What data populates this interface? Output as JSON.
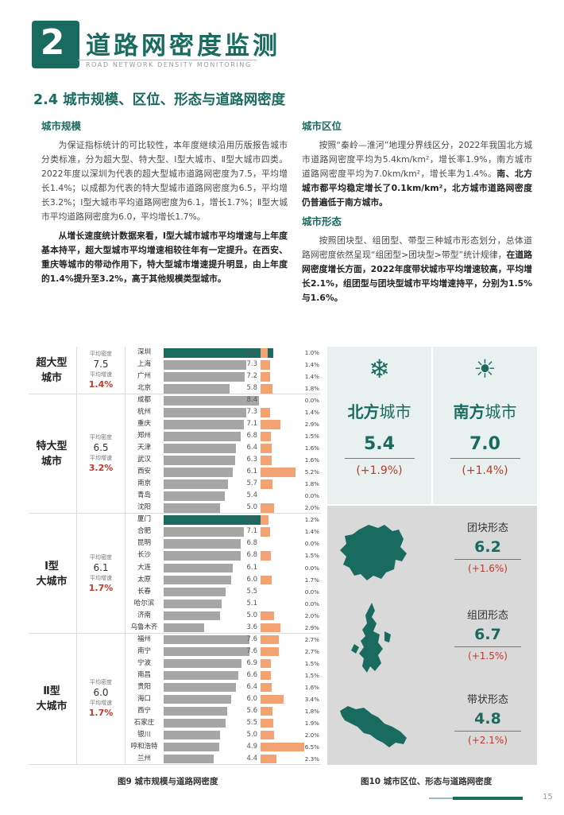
{
  "header": {
    "number": "2",
    "title": "道路网密度监测",
    "subtitle": "ROAD NETWORK DENSITY MONITORING"
  },
  "section_title": "2.4 城市规模、区位、形态与道路网密度",
  "left_col": {
    "heading": "城市规模",
    "p1": "为保证指标统计的可比较性，本年度继续沿用历版报告城市分类标准，分为超大型、特大型、Ⅰ型大城市、Ⅱ型大城市四类。2022年度以深圳为代表的超大型城市道路网密度为7.5，平均增长1.4%；以成都为代表的特大型城市道路网密度为6.5，平均增长3.2%；Ⅰ型大城市平均道路网密度为6.1，增长1.7%；Ⅱ型大城市平均道路网密度为6.0，平均增长1.7%。",
    "p2": "从增长速度统计数据来看，Ⅰ型大城市城市平均增速与上年度基本持平，超大型城市平均增速相较往年有一定提升。在西安、重庆等城市的带动作用下，特大型城市增速提升明显，由上年度的1.4%提升至3.2%，高于其他规模类型城市。"
  },
  "right_col": {
    "heading1": "城市区位",
    "p1_normal": "按照“秦岭—淮河”地理分界线区分，2022年我国北方城市道路网密度平均为5.4km/km²，增长率1.9%，南方城市道路网密度平均为7.0km/km²，增长率为1.4%。",
    "p1_bold": "南、北方城市都平均稳定增长了0.1km/km²，北方城市道路网密度仍普遍低于南方城市。",
    "heading2": "城市形态",
    "p2_normal": "按照团块型、组团型、带型三种城市形态划分，总体道路网密度依然呈现“组团型>团块型>带型”统计规律，",
    "p2_bold": "在道路网密度增长方面，2022年度带状城市平均增速较高，平均增长2.1%，组团型与团块型城市平均增速持平，分别为1.5%与1.6%。"
  },
  "fig9": {
    "caption": "图9 城市规模与道路网密度",
    "stat_label_density": "平均密度",
    "stat_label_growth": "平均增速",
    "groups": [
      {
        "name": "超大型\n城市",
        "density": "7.5",
        "growth": "1.4%",
        "rows": 4
      },
      {
        "name": "特大型\n城市",
        "density": "6.5",
        "growth": "3.2%",
        "rows": 10
      },
      {
        "name": "Ⅰ型\n大城市",
        "density": "6.1",
        "growth": "1.7%",
        "rows": 10
      },
      {
        "name": "Ⅱ型\n大城市",
        "density": "6.0",
        "growth": "1.7%",
        "rows": 11
      }
    ],
    "cities": [
      {
        "city": "深圳",
        "density": "9.7",
        "growth": "1.0%",
        "d": 9.7,
        "g": 1.0
      },
      {
        "city": "上海",
        "density": "7.3",
        "growth": "1.4%",
        "d": 7.3,
        "g": 1.4
      },
      {
        "city": "广州",
        "density": "7.2",
        "growth": "1.4%",
        "d": 7.2,
        "g": 1.4
      },
      {
        "city": "北京",
        "density": "5.8",
        "growth": "1.8%",
        "d": 5.8,
        "g": 1.8
      },
      {
        "city": "成都",
        "density": "8.4",
        "growth": "0.0%",
        "d": 8.4,
        "g": 0.0
      },
      {
        "city": "杭州",
        "density": "7.3",
        "growth": "1.4%",
        "d": 7.3,
        "g": 1.4
      },
      {
        "city": "重庆",
        "density": "7.1",
        "growth": "2.9%",
        "d": 7.1,
        "g": 2.9
      },
      {
        "city": "郑州",
        "density": "6.8",
        "growth": "1.5%",
        "d": 6.8,
        "g": 1.5
      },
      {
        "city": "天津",
        "density": "6.4",
        "growth": "1.6%",
        "d": 6.4,
        "g": 1.6
      },
      {
        "city": "武汉",
        "density": "6.3",
        "growth": "1.6%",
        "d": 6.3,
        "g": 1.6
      },
      {
        "city": "西安",
        "density": "6.1",
        "growth": "5.2%",
        "d": 6.1,
        "g": 5.2
      },
      {
        "city": "南京",
        "density": "5.7",
        "growth": "1.8%",
        "d": 5.7,
        "g": 1.8
      },
      {
        "city": "青岛",
        "density": "5.4",
        "growth": "0.0%",
        "d": 5.4,
        "g": 0.0
      },
      {
        "city": "沈阳",
        "density": "5.0",
        "growth": "2.0%",
        "d": 5.0,
        "g": 2.0
      },
      {
        "city": "厦门",
        "density": "8.6",
        "growth": "1.2%",
        "d": 8.6,
        "g": 1.2
      },
      {
        "city": "合肥",
        "density": "7.1",
        "growth": "1.4%",
        "d": 7.1,
        "g": 1.4
      },
      {
        "city": "昆明",
        "density": "6.8",
        "growth": "0.0%",
        "d": 6.8,
        "g": 0.0
      },
      {
        "city": "长沙",
        "density": "6.8",
        "growth": "1.5%",
        "d": 6.8,
        "g": 1.5
      },
      {
        "city": "大连",
        "density": "6.1",
        "growth": "0.0%",
        "d": 6.1,
        "g": 0.0
      },
      {
        "city": "太原",
        "density": "6.0",
        "growth": "1.7%",
        "d": 6.0,
        "g": 1.7
      },
      {
        "city": "长春",
        "density": "5.5",
        "growth": "0.0%",
        "d": 5.5,
        "g": 0.0
      },
      {
        "city": "哈尔滨",
        "density": "5.1",
        "growth": "0.0%",
        "d": 5.1,
        "g": 0.0
      },
      {
        "city": "济南",
        "density": "5.0",
        "growth": "2.0%",
        "d": 5.0,
        "g": 2.0
      },
      {
        "city": "乌鲁木齐",
        "density": "3.6",
        "growth": "2.9%",
        "d": 3.6,
        "g": 2.9
      },
      {
        "city": "福州",
        "density": "7.6",
        "growth": "2.7%",
        "d": 7.6,
        "g": 2.7
      },
      {
        "city": "南宁",
        "density": "7.6",
        "growth": "2.7%",
        "d": 7.6,
        "g": 2.7
      },
      {
        "city": "宁波",
        "density": "6.9",
        "growth": "1.5%",
        "d": 6.9,
        "g": 1.5
      },
      {
        "city": "南昌",
        "density": "6.6",
        "growth": "1.5%",
        "d": 6.6,
        "g": 1.5
      },
      {
        "city": "贵阳",
        "density": "6.4",
        "growth": "1.6%",
        "d": 6.4,
        "g": 1.6
      },
      {
        "city": "海口",
        "density": "6.0",
        "growth": "3.4%",
        "d": 6.0,
        "g": 3.4
      },
      {
        "city": "西宁",
        "density": "5.6",
        "growth": "1.8%",
        "d": 5.6,
        "g": 1.8
      },
      {
        "city": "石家庄",
        "density": "5.5",
        "growth": "1.9%",
        "d": 5.5,
        "g": 1.9
      },
      {
        "city": "银川",
        "density": "5.0",
        "growth": "2.0%",
        "d": 5.0,
        "g": 2.0
      },
      {
        "city": "呼和浩特",
        "density": "4.9",
        "growth": "6.5%",
        "d": 4.9,
        "g": 6.5
      },
      {
        "city": "兰州",
        "density": "4.4",
        "growth": "2.3%",
        "d": 4.4,
        "g": 2.3
      }
    ]
  },
  "fig10": {
    "caption": "图10 城市区位、形态与道路网密度",
    "north": {
      "name_bold": "北方",
      "name_rest": "城市",
      "value": "5.4",
      "growth": "(+1.9%)"
    },
    "south": {
      "name_bold": "南方",
      "name_rest": "城市",
      "value": "7.0",
      "growth": "(+1.4%)"
    },
    "forms": [
      {
        "name": "团块形态",
        "value": "6.2",
        "growth": "(+1.6%)"
      },
      {
        "name": "组团形态",
        "value": "6.7",
        "growth": "(+1.5%)"
      },
      {
        "name": "带状形态",
        "value": "4.8",
        "growth": "(+2.1%)"
      }
    ],
    "colors": {
      "teal": "#1a6b5f",
      "gray_bar": "#a6a6a6",
      "orange": "#f3a274",
      "red": "#c0392b"
    }
  },
  "page_number": "15"
}
